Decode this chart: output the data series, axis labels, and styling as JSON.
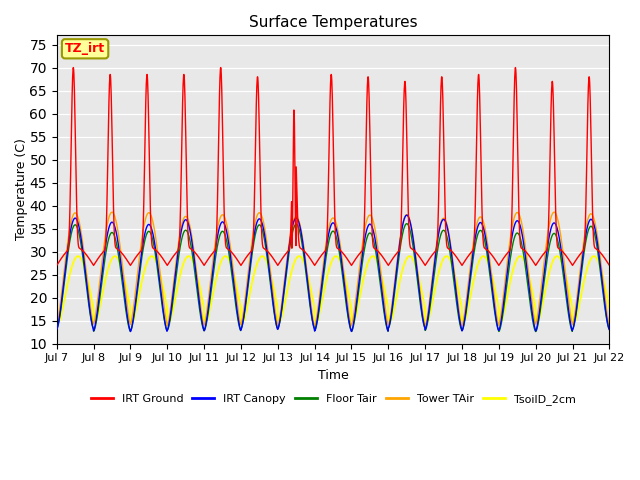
{
  "title": "Surface Temperatures",
  "xlabel": "Time",
  "ylabel": "Temperature (C)",
  "ylim": [
    10,
    77
  ],
  "yticks": [
    10,
    15,
    20,
    25,
    30,
    35,
    40,
    45,
    50,
    55,
    60,
    65,
    70,
    75
  ],
  "x_labels": [
    "Jul 7",
    "Jul 8",
    "Jul 9",
    "Jul 10",
    "Jul 11",
    "Jul 12",
    "Jul 13",
    "Jul 14",
    "Jul 15",
    "Jul 16",
    "Jul 17",
    "Jul 18",
    "Jul 19",
    "Jul 20",
    "Jul 21",
    "Jul 22"
  ],
  "num_days": 15,
  "points_per_day": 144,
  "background_color": "#e8e8e8",
  "series": {
    "IRT Ground": {
      "color": "red",
      "lw": 1.0
    },
    "IRT Canopy": {
      "color": "blue",
      "lw": 1.0
    },
    "Floor Tair": {
      "color": "green",
      "lw": 1.0
    },
    "Tower TAir": {
      "color": "orange",
      "lw": 1.0
    },
    "TsoilD_2cm": {
      "color": "yellow",
      "lw": 1.3
    }
  },
  "annotation_text": "TZ_irt",
  "annotation_box_color": "#ffff99",
  "annotation_border_color": "#999900",
  "annotation_text_color": "red",
  "ground_peak_heights": [
    70,
    68.5,
    68.5,
    68.5,
    70,
    68,
    57,
    68.5,
    68,
    67,
    68,
    68.5,
    70,
    67,
    68
  ],
  "ground_trough": 27,
  "canopy_peak": 37,
  "canopy_trough": 13,
  "soil_peak": 29,
  "soil_trough": 15
}
